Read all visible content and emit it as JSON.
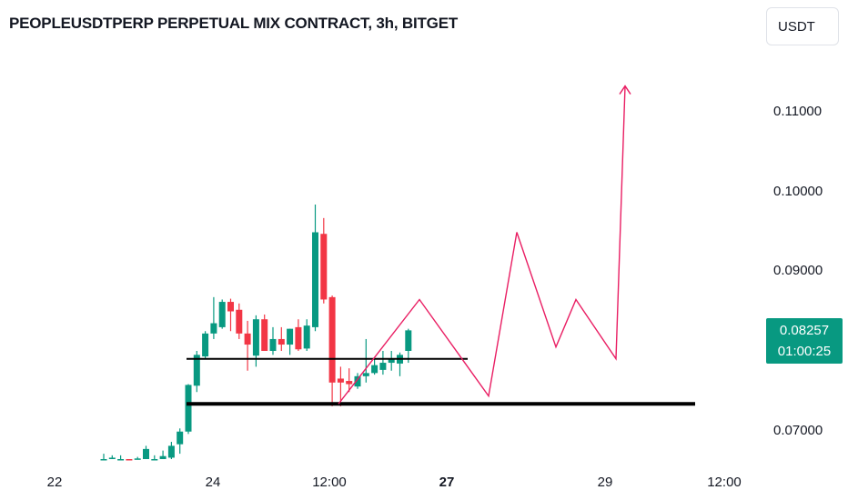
{
  "header": {
    "title": "PEOPLEUSDTPERP PERPETUAL MIX CONTRACT, 3h, BITGET",
    "currency": "USDT"
  },
  "price_badge": {
    "price": "0.08257",
    "countdown": "01:00:25"
  },
  "colors": {
    "up": "#089981",
    "down": "#f23645",
    "projection": "#e91e63",
    "levels": "#000000",
    "badge": "#089981"
  },
  "chart_data": {
    "type": "candlestick",
    "title": "PEOPLEUSDTPERP PERPETUAL MIX CONTRACT, 3h, BITGET",
    "y_axis": {
      "ticks": [
        "0.11000",
        "0.10000",
        "0.09000",
        "0.07000"
      ],
      "range": [
        0.0665,
        0.1155
      ],
      "position": "right"
    },
    "x_axis": {
      "ticks": [
        {
          "label": "22",
          "bold": false
        },
        {
          "label": "24",
          "bold": false
        },
        {
          "label": "12:00",
          "bold": false
        },
        {
          "label": "27",
          "bold": true
        },
        {
          "label": "29",
          "bold": false
        },
        {
          "label": "12:00",
          "bold": false
        }
      ]
    },
    "candles": [
      {
        "o": 0.0655,
        "h": 0.067,
        "l": 0.065,
        "c": 0.0662
      },
      {
        "o": 0.0652,
        "h": 0.0668,
        "l": 0.065,
        "c": 0.0665
      },
      {
        "o": 0.066,
        "h": 0.0668,
        "l": 0.0652,
        "c": 0.0662
      },
      {
        "o": 0.0658,
        "h": 0.0662,
        "l": 0.0655,
        "c": 0.0657
      },
      {
        "o": 0.0656,
        "h": 0.0666,
        "l": 0.0652,
        "c": 0.0664
      },
      {
        "o": 0.0658,
        "h": 0.068,
        "l": 0.0655,
        "c": 0.0676
      },
      {
        "o": 0.0661,
        "h": 0.0668,
        "l": 0.0658,
        "c": 0.0662
      },
      {
        "o": 0.0661,
        "h": 0.0674,
        "l": 0.0659,
        "c": 0.0667
      },
      {
        "o": 0.0665,
        "h": 0.0685,
        "l": 0.0662,
        "c": 0.068
      },
      {
        "o": 0.0682,
        "h": 0.0702,
        "l": 0.067,
        "c": 0.0698
      },
      {
        "o": 0.0698,
        "h": 0.0758,
        "l": 0.0695,
        "c": 0.0757
      },
      {
        "o": 0.0756,
        "h": 0.08,
        "l": 0.0748,
        "c": 0.0795
      },
      {
        "o": 0.0793,
        "h": 0.0825,
        "l": 0.079,
        "c": 0.0822
      },
      {
        "o": 0.0822,
        "h": 0.0868,
        "l": 0.0815,
        "c": 0.0835
      },
      {
        "o": 0.083,
        "h": 0.0865,
        "l": 0.0828,
        "c": 0.0862
      },
      {
        "o": 0.0862,
        "h": 0.0866,
        "l": 0.0825,
        "c": 0.085
      },
      {
        "o": 0.0852,
        "h": 0.086,
        "l": 0.0815,
        "c": 0.0822
      },
      {
        "o": 0.0822,
        "h": 0.0838,
        "l": 0.0775,
        "c": 0.0808
      },
      {
        "o": 0.0794,
        "h": 0.0845,
        "l": 0.078,
        "c": 0.084
      },
      {
        "o": 0.084,
        "h": 0.0846,
        "l": 0.08,
        "c": 0.08
      },
      {
        "o": 0.08,
        "h": 0.083,
        "l": 0.0795,
        "c": 0.0815
      },
      {
        "o": 0.0815,
        "h": 0.083,
        "l": 0.08,
        "c": 0.0808
      },
      {
        "o": 0.0808,
        "h": 0.0828,
        "l": 0.0795,
        "c": 0.0828
      },
      {
        "o": 0.083,
        "h": 0.084,
        "l": 0.08,
        "c": 0.0802
      },
      {
        "o": 0.0803,
        "h": 0.084,
        "l": 0.08,
        "c": 0.0832
      },
      {
        "o": 0.083,
        "h": 0.0985,
        "l": 0.0825,
        "c": 0.095
      },
      {
        "o": 0.0948,
        "h": 0.0968,
        "l": 0.086,
        "c": 0.0865
      },
      {
        "o": 0.0868,
        "h": 0.087,
        "l": 0.073,
        "c": 0.076
      },
      {
        "o": 0.0765,
        "h": 0.078,
        "l": 0.073,
        "c": 0.076
      },
      {
        "o": 0.0762,
        "h": 0.0778,
        "l": 0.0748,
        "c": 0.0758
      },
      {
        "o": 0.0755,
        "h": 0.0772,
        "l": 0.0752,
        "c": 0.0768
      },
      {
        "o": 0.0768,
        "h": 0.0815,
        "l": 0.076,
        "c": 0.0772
      },
      {
        "o": 0.0772,
        "h": 0.079,
        "l": 0.077,
        "c": 0.0782
      },
      {
        "o": 0.0776,
        "h": 0.08,
        "l": 0.077,
        "c": 0.0785
      },
      {
        "o": 0.0785,
        "h": 0.08,
        "l": 0.0775,
        "c": 0.079
      },
      {
        "o": 0.0784,
        "h": 0.0798,
        "l": 0.0768,
        "c": 0.0795
      },
      {
        "o": 0.08,
        "h": 0.0828,
        "l": 0.0785,
        "c": 0.0826
      }
    ],
    "levels": [
      {
        "name": "upper-support",
        "y": 0.079
      },
      {
        "name": "lower-support",
        "y": 0.0733
      }
    ],
    "projection_path": [
      0.0733,
      0.0865,
      0.0743,
      0.095,
      0.0805,
      0.0865,
      0.079,
      0.1135
    ]
  }
}
